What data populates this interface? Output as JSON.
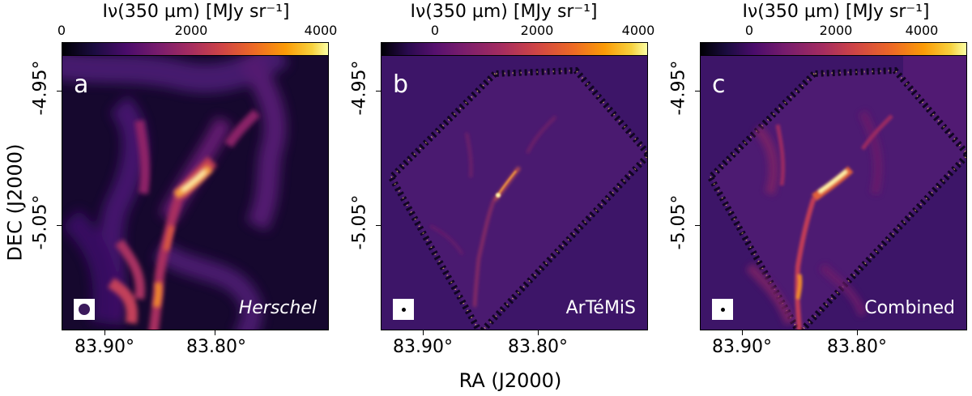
{
  "colorbars": [
    {
      "title": "Iν(350 µm) [MJy sr⁻¹]",
      "ticks": [
        "0",
        "2000",
        "4000"
      ]
    },
    {
      "title": "Iν(350 µm) [MJy sr⁻¹]",
      "ticks": [
        "0",
        "2000",
        "4000"
      ]
    },
    {
      "title": "Iν(350 µm) [MJy sr⁻¹]",
      "ticks": [
        "0",
        "2000",
        "4000"
      ]
    }
  ],
  "panels": [
    {
      "letter": "a",
      "instrument": "Herschel"
    },
    {
      "letter": "b",
      "instrument": "ArTéMiS"
    },
    {
      "letter": "c",
      "instrument": "Combined"
    }
  ],
  "axes": {
    "y_ticks": [
      "-4.95°",
      "-5.05°"
    ],
    "x_ticks": [
      "83.90°",
      "83.80°"
    ],
    "y_title": "DEC (J2000)",
    "x_title": "RA (J2000)"
  },
  "colormap": "inferno",
  "colors": {
    "background": "#3d1568",
    "filament": "#f4a64a",
    "peak": "#fff3a8"
  }
}
